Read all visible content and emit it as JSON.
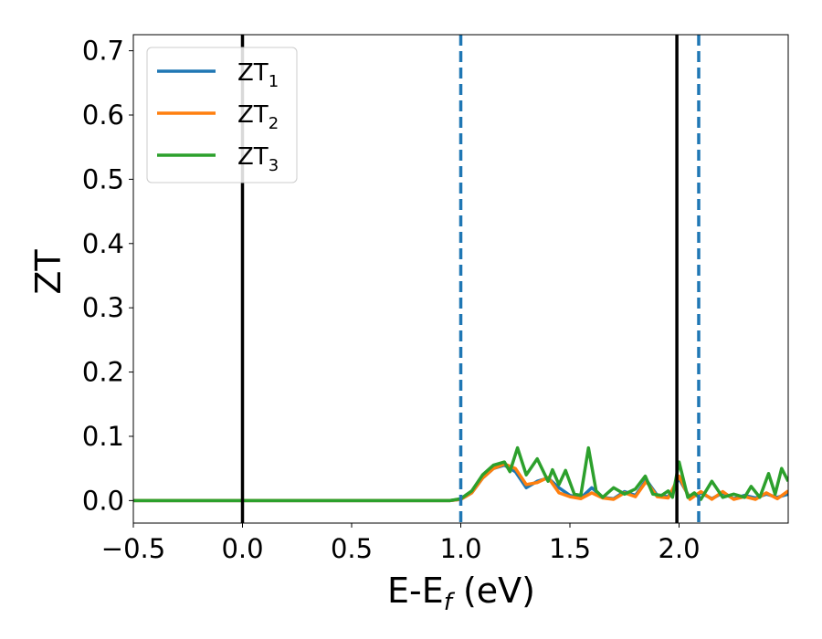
{
  "chart_data": {
    "type": "line",
    "xlabel": "E-E",
    "xlabel_sub": "f",
    "xlabel_unit": " (eV)",
    "ylabel": "ZT",
    "xlim": [
      -0.5,
      2.5
    ],
    "ylim": [
      -0.035,
      0.725
    ],
    "grid": false,
    "legend_placement": "top-left",
    "xticks": [
      -0.5,
      0.0,
      0.5,
      1.0,
      1.5,
      2.0
    ],
    "xtick_labels": [
      "−0.5",
      "0.0",
      "0.5",
      "1.0",
      "1.5",
      "2.0"
    ],
    "yticks": [
      0.0,
      0.1,
      0.2,
      0.3,
      0.4,
      0.5,
      0.6,
      0.7
    ],
    "ytick_labels": [
      "0.0",
      "0.1",
      "0.2",
      "0.3",
      "0.4",
      "0.5",
      "0.6",
      "0.7"
    ],
    "vlines": [
      {
        "x": 0.0,
        "color": "#000000",
        "style": "solid"
      },
      {
        "x": 1.0,
        "color": "#1f77b4",
        "style": "dashed"
      },
      {
        "x": 1.99,
        "color": "#000000",
        "style": "solid"
      },
      {
        "x": 2.09,
        "color": "#1f77b4",
        "style": "dashed"
      }
    ],
    "series": [
      {
        "name": "ZT",
        "sub": "1",
        "color": "#1f77b4",
        "points": [
          [
            -0.5,
            0
          ],
          [
            0.95,
            0
          ],
          [
            1.0,
            0.002
          ],
          [
            1.05,
            0.012
          ],
          [
            1.1,
            0.035
          ],
          [
            1.15,
            0.05
          ],
          [
            1.2,
            0.055
          ],
          [
            1.25,
            0.045
          ],
          [
            1.3,
            0.02
          ],
          [
            1.35,
            0.03
          ],
          [
            1.4,
            0.035
          ],
          [
            1.45,
            0.02
          ],
          [
            1.5,
            0.008
          ],
          [
            1.55,
            0.004
          ],
          [
            1.6,
            0.02
          ],
          [
            1.65,
            0.005
          ],
          [
            1.7,
            0.003
          ],
          [
            1.75,
            0.014
          ],
          [
            1.8,
            0.008
          ],
          [
            1.85,
            0.032
          ],
          [
            1.9,
            0.008
          ],
          [
            1.95,
            0.006
          ],
          [
            2.0,
            0.034
          ],
          [
            2.05,
            0.004
          ],
          [
            2.1,
            0.012
          ],
          [
            2.15,
            0.003
          ],
          [
            2.2,
            0.012
          ],
          [
            2.25,
            0.003
          ],
          [
            2.3,
            0.008
          ],
          [
            2.35,
            0.004
          ],
          [
            2.4,
            0.01
          ],
          [
            2.45,
            0.005
          ],
          [
            2.5,
            0.01
          ]
        ]
      },
      {
        "name": "ZT",
        "sub": "2",
        "color": "#ff7f0e",
        "points": [
          [
            -0.5,
            0
          ],
          [
            0.95,
            0
          ],
          [
            1.0,
            0.002
          ],
          [
            1.05,
            0.012
          ],
          [
            1.1,
            0.035
          ],
          [
            1.15,
            0.05
          ],
          [
            1.2,
            0.057
          ],
          [
            1.25,
            0.05
          ],
          [
            1.3,
            0.025
          ],
          [
            1.35,
            0.028
          ],
          [
            1.4,
            0.036
          ],
          [
            1.45,
            0.012
          ],
          [
            1.5,
            0.006
          ],
          [
            1.55,
            0.003
          ],
          [
            1.6,
            0.012
          ],
          [
            1.65,
            0.004
          ],
          [
            1.7,
            0.002
          ],
          [
            1.75,
            0.012
          ],
          [
            1.8,
            0.006
          ],
          [
            1.85,
            0.03
          ],
          [
            1.9,
            0.006
          ],
          [
            1.95,
            0.004
          ],
          [
            2.0,
            0.038
          ],
          [
            2.05,
            0.002
          ],
          [
            2.1,
            0.014
          ],
          [
            2.15,
            0.002
          ],
          [
            2.2,
            0.014
          ],
          [
            2.25,
            0.002
          ],
          [
            2.3,
            0.006
          ],
          [
            2.35,
            0.002
          ],
          [
            2.4,
            0.012
          ],
          [
            2.45,
            0.003
          ],
          [
            2.5,
            0.015
          ]
        ]
      },
      {
        "name": "ZT",
        "sub": "3",
        "color": "#2ca02c",
        "points": [
          [
            -0.5,
            0
          ],
          [
            0.95,
            0
          ],
          [
            1.0,
            0.003
          ],
          [
            1.05,
            0.015
          ],
          [
            1.1,
            0.04
          ],
          [
            1.15,
            0.055
          ],
          [
            1.2,
            0.06
          ],
          [
            1.225,
            0.045
          ],
          [
            1.26,
            0.082
          ],
          [
            1.3,
            0.04
          ],
          [
            1.35,
            0.065
          ],
          [
            1.4,
            0.03
          ],
          [
            1.42,
            0.048
          ],
          [
            1.45,
            0.025
          ],
          [
            1.48,
            0.047
          ],
          [
            1.52,
            0.01
          ],
          [
            1.55,
            0.008
          ],
          [
            1.585,
            0.082
          ],
          [
            1.62,
            0.015
          ],
          [
            1.65,
            0.005
          ],
          [
            1.7,
            0.02
          ],
          [
            1.75,
            0.01
          ],
          [
            1.8,
            0.018
          ],
          [
            1.845,
            0.038
          ],
          [
            1.88,
            0.01
          ],
          [
            1.92,
            0.008
          ],
          [
            1.95,
            0.015
          ],
          [
            1.97,
            0.005
          ],
          [
            2.0,
            0.06
          ],
          [
            2.04,
            0.005
          ],
          [
            2.07,
            0.012
          ],
          [
            2.1,
            0.002
          ],
          [
            2.15,
            0.03
          ],
          [
            2.2,
            0.005
          ],
          [
            2.25,
            0.01
          ],
          [
            2.3,
            0.005
          ],
          [
            2.33,
            0.022
          ],
          [
            2.37,
            0.005
          ],
          [
            2.41,
            0.042
          ],
          [
            2.44,
            0.01
          ],
          [
            2.47,
            0.05
          ],
          [
            2.5,
            0.03
          ]
        ]
      }
    ]
  }
}
